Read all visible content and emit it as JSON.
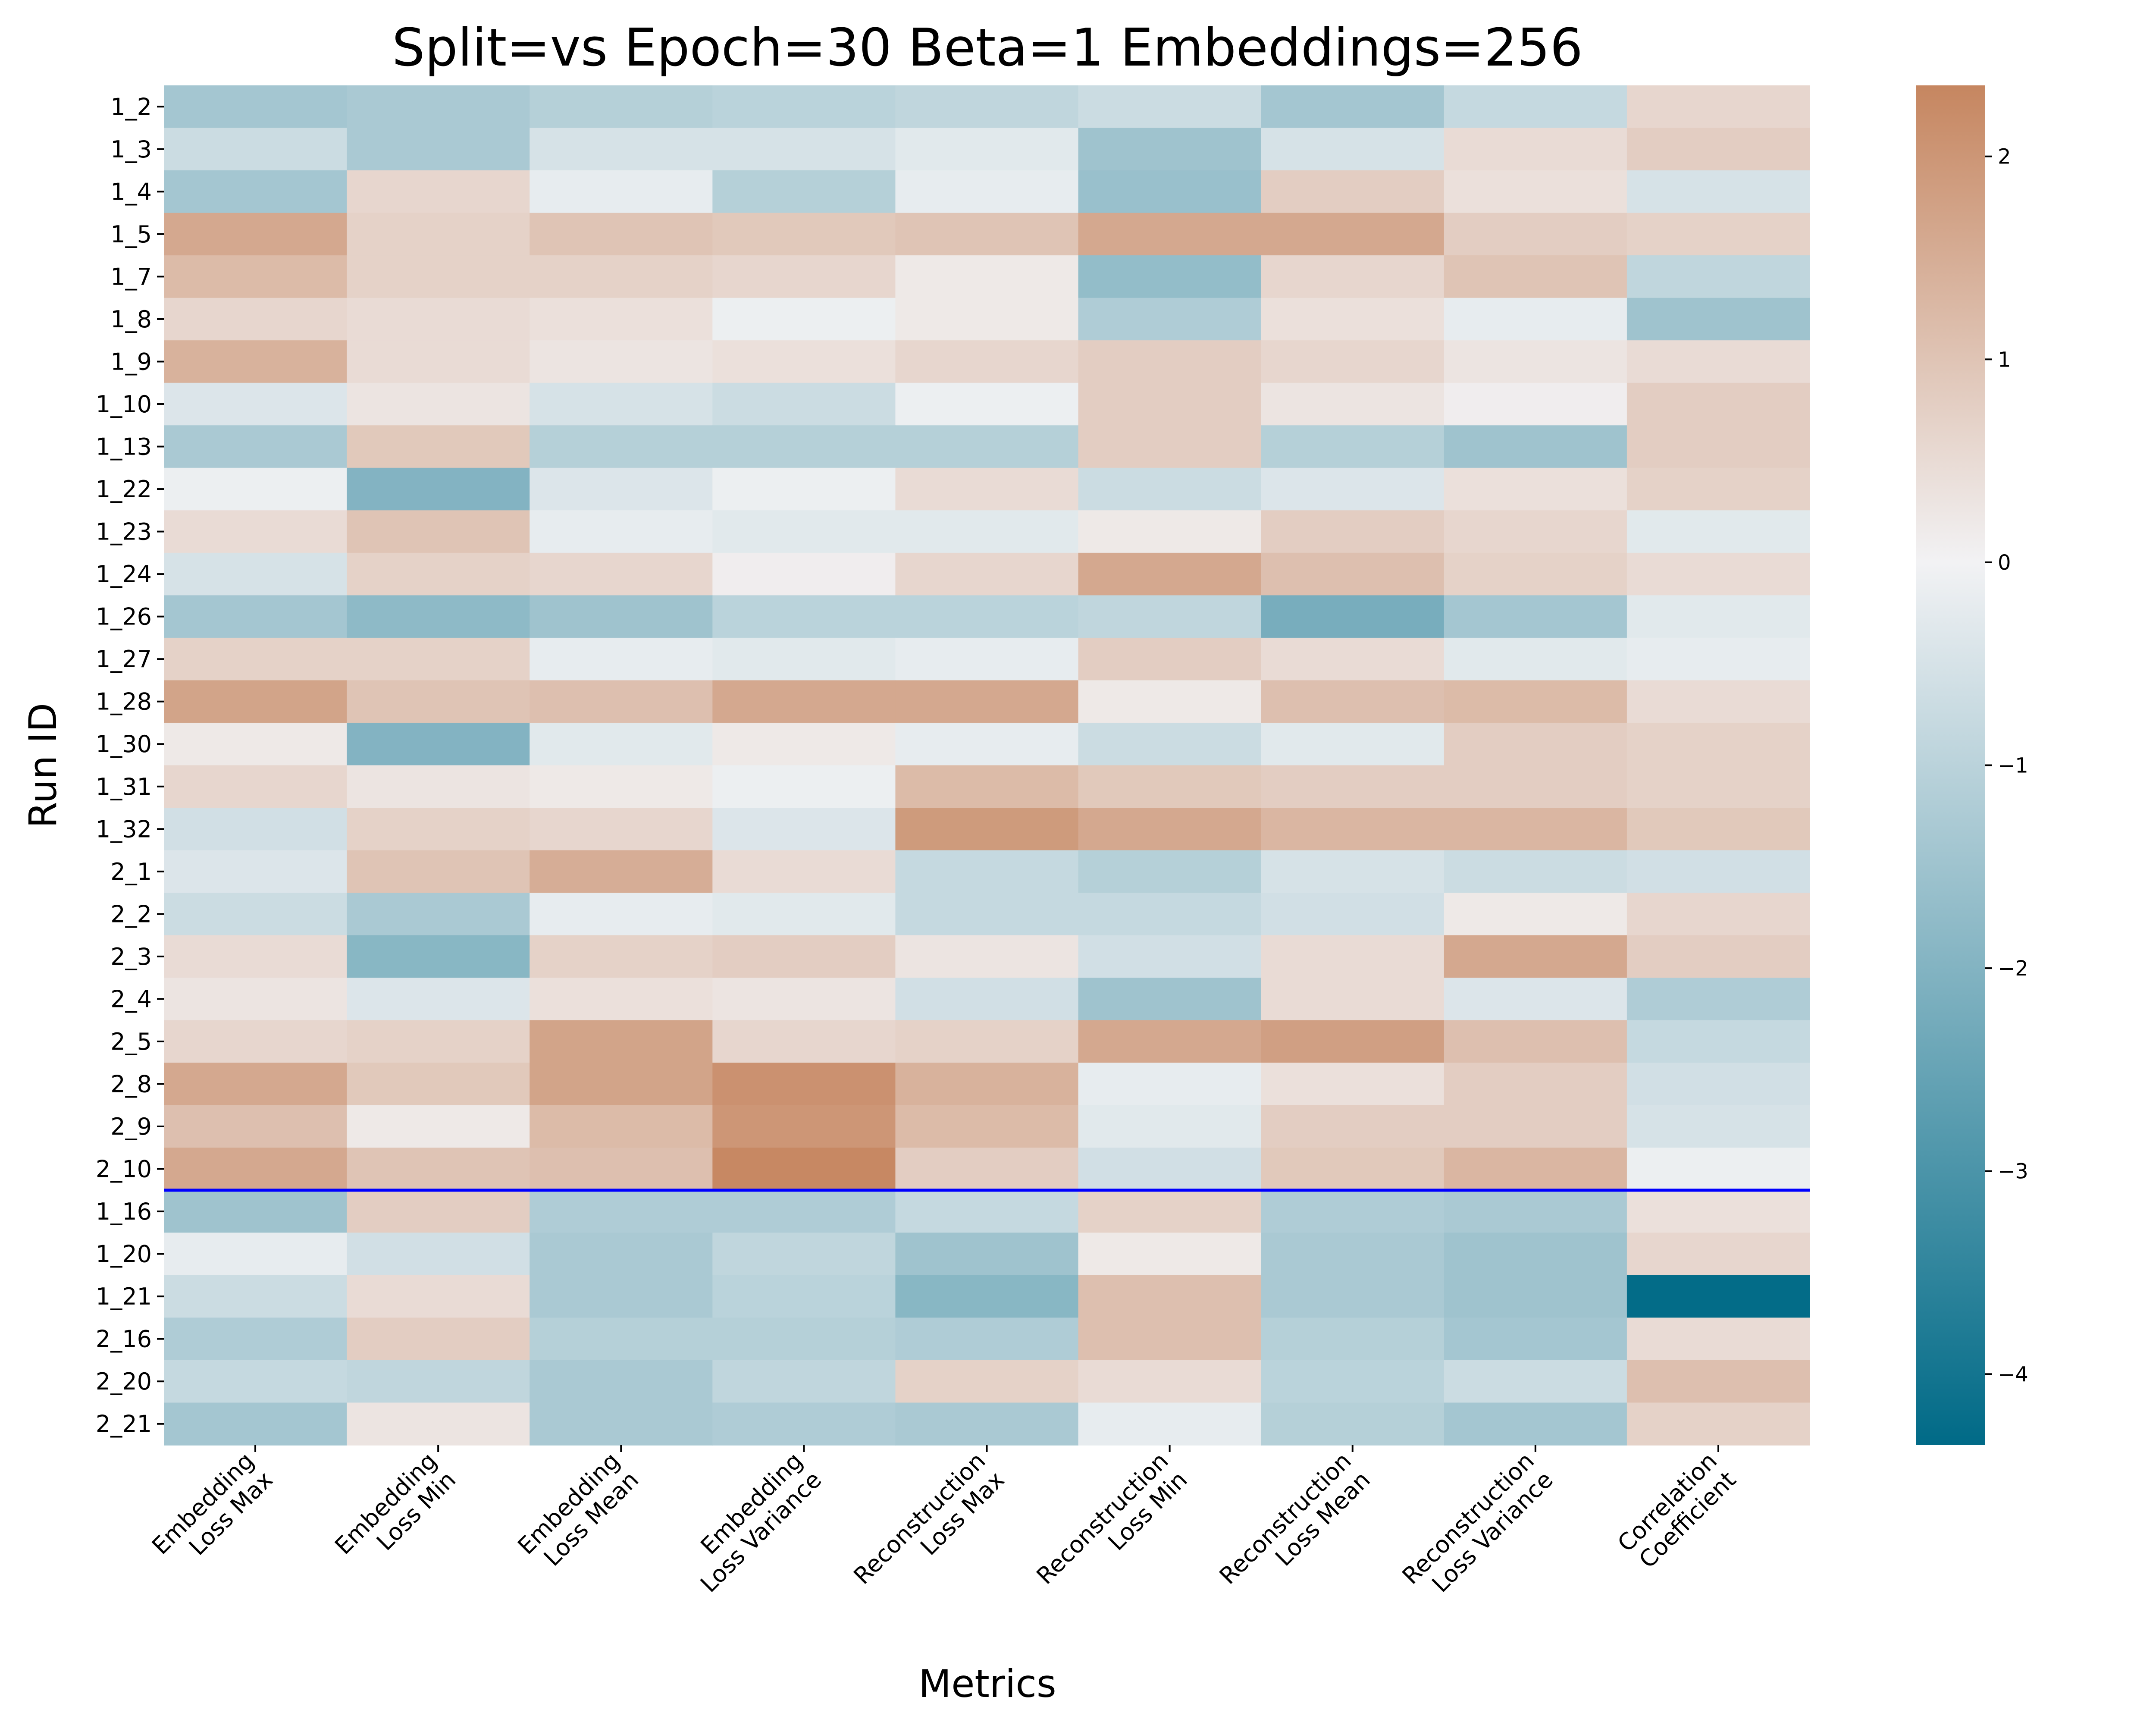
{
  "chart_data": {
    "type": "heatmap",
    "title": "Split=vs Epoch=30 Beta=1 Embeddings=256",
    "xlabel": "Metrics",
    "ylabel": "Run ID",
    "columns": [
      [
        "Embedding",
        "Loss Max"
      ],
      [
        "Embedding",
        "Loss Min"
      ],
      [
        "Embedding",
        "Loss Mean"
      ],
      [
        "Embedding",
        "Loss Variance"
      ],
      [
        "Reconstruction",
        "Loss Max"
      ],
      [
        "Reconstruction",
        "Loss Min"
      ],
      [
        "Reconstruction",
        "Loss Mean"
      ],
      [
        "Reconstruction",
        "Loss Variance"
      ],
      [
        "Correlation",
        "Coefficient"
      ]
    ],
    "rows": [
      "1_2",
      "1_3",
      "1_4",
      "1_5",
      "1_7",
      "1_8",
      "1_9",
      "1_10",
      "1_13",
      "1_22",
      "1_23",
      "1_24",
      "1_26",
      "1_27",
      "1_28",
      "1_30",
      "1_31",
      "1_32",
      "2_1",
      "2_2",
      "2_3",
      "2_4",
      "2_5",
      "2_8",
      "2_9",
      "2_10",
      "1_16",
      "1_20",
      "1_21",
      "2_16",
      "2_20",
      "2_21"
    ],
    "values": [
      [
        -1.4,
        -1.3,
        -1.1,
        -1.0,
        -0.9,
        -0.7,
        -1.4,
        -0.8,
        0.6
      ],
      [
        -0.7,
        -1.3,
        -0.5,
        -0.5,
        -0.3,
        -1.5,
        -0.5,
        0.5,
        0.8
      ],
      [
        -1.4,
        0.6,
        -0.2,
        -1.1,
        -0.2,
        -1.6,
        0.8,
        0.4,
        -0.5
      ],
      [
        1.6,
        0.7,
        1.0,
        0.9,
        1.0,
        1.6,
        1.6,
        0.8,
        0.7
      ],
      [
        1.2,
        0.7,
        0.7,
        0.6,
        0.2,
        -1.7,
        0.6,
        1.0,
        -0.9
      ],
      [
        0.6,
        0.5,
        0.4,
        -0.1,
        0.2,
        -1.2,
        0.4,
        -0.2,
        -1.5
      ],
      [
        1.4,
        0.5,
        0.3,
        0.4,
        0.6,
        0.8,
        0.6,
        0.3,
        0.5
      ],
      [
        -0.4,
        0.3,
        -0.5,
        -0.7,
        -0.1,
        0.8,
        0.3,
        0.1,
        0.8
      ],
      [
        -1.3,
        0.9,
        -1.1,
        -1.1,
        -1.1,
        0.8,
        -1.1,
        -1.5,
        0.8
      ],
      [
        -0.1,
        -2.0,
        -0.4,
        -0.1,
        0.5,
        -0.7,
        -0.4,
        0.4,
        0.7
      ],
      [
        0.5,
        1.0,
        -0.2,
        -0.3,
        -0.3,
        0.2,
        0.8,
        0.6,
        -0.3
      ],
      [
        -0.5,
        0.7,
        0.6,
        0.1,
        0.6,
        1.6,
        1.1,
        0.7,
        0.5
      ],
      [
        -1.4,
        -1.8,
        -1.5,
        -1.0,
        -1.0,
        -0.9,
        -2.2,
        -1.4,
        -0.3
      ],
      [
        0.7,
        0.7,
        -0.2,
        -0.3,
        -0.2,
        0.8,
        0.5,
        -0.3,
        -0.2
      ],
      [
        1.7,
        1.0,
        1.1,
        1.6,
        1.6,
        0.2,
        1.1,
        1.2,
        0.5
      ],
      [
        0.2,
        -2.0,
        -0.3,
        0.2,
        -0.2,
        -0.7,
        -0.3,
        0.8,
        0.7
      ],
      [
        0.6,
        0.3,
        0.2,
        -0.1,
        1.2,
        0.9,
        0.8,
        0.8,
        0.7
      ],
      [
        -0.6,
        0.7,
        0.6,
        -0.4,
        1.9,
        1.6,
        1.3,
        1.3,
        0.9
      ],
      [
        -0.4,
        1.0,
        1.5,
        0.5,
        -0.8,
        -1.1,
        -0.5,
        -0.7,
        -0.6
      ],
      [
        -0.7,
        -1.3,
        -0.2,
        -0.3,
        -0.8,
        -0.8,
        -0.6,
        0.2,
        0.6
      ],
      [
        0.5,
        -1.9,
        0.7,
        0.8,
        0.3,
        -0.6,
        0.5,
        1.6,
        0.8
      ],
      [
        0.3,
        -0.4,
        0.4,
        0.3,
        -0.6,
        -1.5,
        0.5,
        -0.4,
        -1.2
      ],
      [
        0.6,
        0.7,
        1.7,
        0.6,
        0.7,
        1.6,
        1.8,
        1.1,
        -0.8
      ],
      [
        1.6,
        0.9,
        1.7,
        2.1,
        1.4,
        -0.2,
        0.4,
        0.8,
        -0.6
      ],
      [
        1.1,
        0.2,
        1.2,
        2.0,
        1.2,
        -0.3,
        0.8,
        0.8,
        -0.5
      ],
      [
        1.6,
        1.0,
        1.1,
        2.3,
        0.8,
        -0.6,
        0.9,
        1.3,
        -0.1
      ],
      [
        -1.5,
        0.8,
        -1.2,
        -1.2,
        -0.8,
        0.7,
        -1.2,
        -1.3,
        0.4
      ],
      [
        -0.2,
        -0.6,
        -1.3,
        -0.9,
        -1.5,
        0.2,
        -1.3,
        -1.5,
        0.6
      ],
      [
        -0.7,
        0.5,
        -1.3,
        -1.0,
        -1.9,
        1.1,
        -1.3,
        -1.5,
        -4.3
      ],
      [
        -1.2,
        0.8,
        -1.1,
        -1.1,
        -1.2,
        1.1,
        -1.1,
        -1.4,
        0.5
      ],
      [
        -0.8,
        -0.9,
        -1.3,
        -0.9,
        0.7,
        0.5,
        -1.0,
        -0.7,
        1.1
      ],
      [
        -1.4,
        0.3,
        -1.3,
        -1.2,
        -1.3,
        -0.2,
        -1.1,
        -1.4,
        0.7
      ]
    ],
    "separator_after_row": "2_10",
    "separator_color": "#0000ff",
    "colorbar": {
      "vmin": -4.35,
      "vmax": 2.35,
      "ticks": [
        2,
        1,
        0,
        -1,
        -2,
        -3,
        -4
      ],
      "tick_labels": [
        "2",
        "1",
        "0",
        "−1",
        "−2",
        "−3",
        "−4"
      ],
      "color_low": "#006a87",
      "color_mid": "#f2f2f4",
      "color_high": "#c68660"
    },
    "grid": false,
    "legend": "colorbar-right"
  }
}
